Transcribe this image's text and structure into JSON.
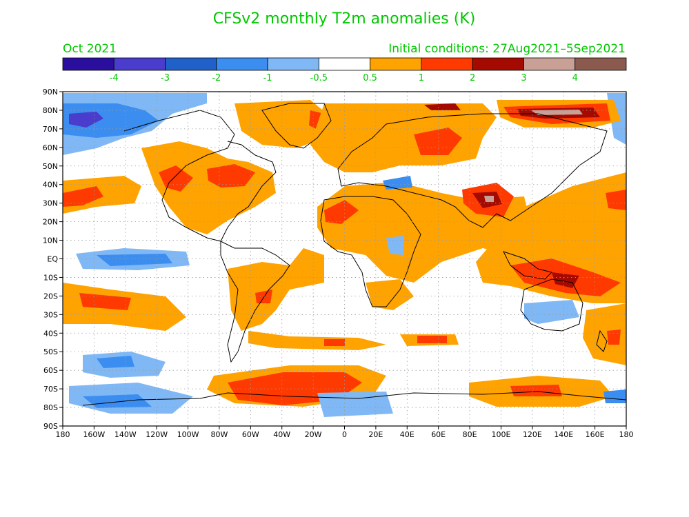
{
  "title": "CFSv2 monthly T2m anomalies (K)",
  "valid_month": "Oct 2021",
  "initial_conditions": "Initial conditions: 27Aug2021–5Sep2021",
  "colorbar": {
    "colors": [
      "#2a0f9f",
      "#4a3ccc",
      "#1f60c9",
      "#3b8ef0",
      "#7fb8f5",
      "#ffffff",
      "#ffa300",
      "#ff3a00",
      "#a50a00",
      "#c8a096",
      "#8b5a4e"
    ],
    "labels": [
      "-4",
      "-3",
      "-2",
      "-1",
      "-0.5",
      "0.5",
      "1",
      "2",
      "3",
      "4"
    ]
  },
  "axes": {
    "lat_labels": [
      "90N",
      "80N",
      "70N",
      "60N",
      "50N",
      "40N",
      "30N",
      "20N",
      "10N",
      "EQ",
      "10S",
      "20S",
      "30S",
      "40S",
      "50S",
      "60S",
      "70S",
      "80S",
      "90S"
    ],
    "lon_labels": [
      "180",
      "160W",
      "140W",
      "120W",
      "100W",
      "80W",
      "60W",
      "40W",
      "20W",
      "0",
      "20E",
      "40E",
      "60E",
      "80E",
      "100E",
      "120E",
      "140E",
      "160E",
      "180"
    ]
  },
  "map": {
    "lon_range": [
      -180,
      180
    ],
    "lat_range": [
      -90,
      90
    ],
    "gridlines": true,
    "projection": "cylindrical equidistant"
  }
}
